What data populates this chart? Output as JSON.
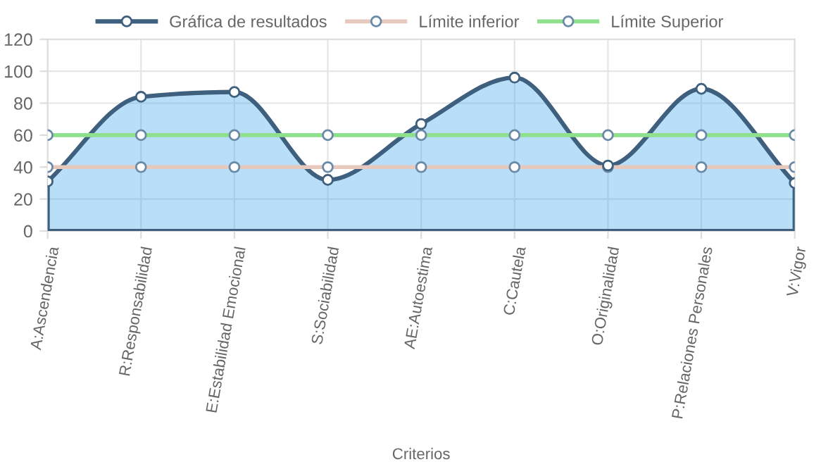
{
  "chart_data": {
    "type": "area",
    "xlabel": "Criterios",
    "categories": [
      "A:Ascendencia",
      "R:Responsabilidad",
      "E:Estabilidad Emocional",
      "S:Sociabilidad",
      "AE:Autoestima",
      "C:Cautela",
      "O:Originalidad",
      "P:Relaciones Personales",
      "V:Vigor"
    ],
    "series": [
      {
        "name": "Gráfica de resultados",
        "color": "#3e5f7e",
        "values": [
          31,
          84,
          87,
          32,
          67,
          96,
          41,
          89,
          30
        ]
      },
      {
        "name": "Límite inferior",
        "type": "line",
        "color": "#e6c8bd",
        "values": [
          40,
          40,
          40,
          40,
          40,
          40,
          40,
          40,
          40
        ]
      },
      {
        "name": "Límite Superior",
        "type": "line",
        "color": "#8fe08c",
        "values": [
          60,
          60,
          60,
          60,
          60,
          60,
          60,
          60,
          60
        ]
      }
    ],
    "ylim": [
      0,
      120
    ],
    "yticks": [
      0,
      20,
      40,
      60,
      80,
      100,
      120
    ],
    "grid": true,
    "legend": "top",
    "marker": "circle",
    "line_style": "solid"
  }
}
